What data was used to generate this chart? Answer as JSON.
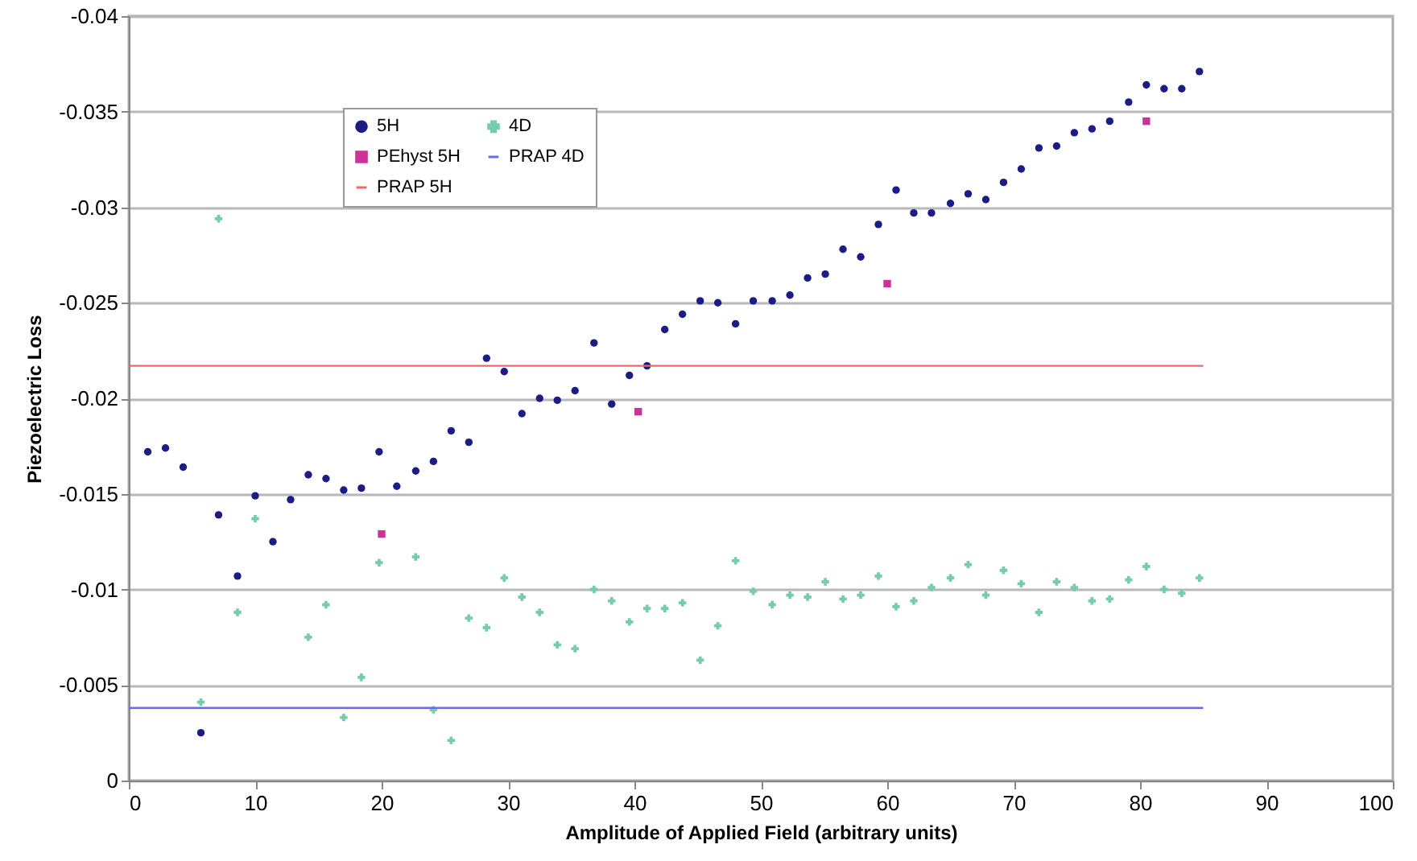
{
  "chart_data": {
    "type": "scatter",
    "xlabel": "Amplitude of Applied Field (arbitrary units)",
    "ylabel": "Piezoelectric Loss",
    "xlim": [
      0,
      100
    ],
    "xticks": [
      0,
      10,
      20,
      30,
      40,
      50,
      60,
      70,
      80,
      90,
      100
    ],
    "ylim": [
      0,
      -0.04
    ],
    "yticks": [
      0,
      -0.005,
      -0.01,
      -0.015,
      -0.02,
      -0.025,
      -0.03,
      -0.035,
      -0.04
    ],
    "grid": "y",
    "legend": "top left",
    "series": [
      {
        "name": "5H",
        "color": "#1c1c84",
        "marker": "circle",
        "x": [
          1.5,
          2.9,
          4.3,
          5.7,
          7.1,
          8.6,
          10.0,
          11.4,
          12.8,
          14.2,
          15.6,
          17.0,
          18.4,
          19.8,
          21.2,
          22.7,
          24.1,
          25.5,
          26.9,
          28.3,
          29.7,
          31.1,
          32.5,
          33.9,
          35.3,
          36.8,
          38.2,
          39.6,
          41.0,
          42.4,
          43.8,
          45.2,
          46.6,
          48.0,
          49.4,
          50.9,
          52.3,
          53.7,
          55.1,
          56.5,
          57.9,
          59.3,
          60.7,
          62.1,
          63.5,
          65.0,
          66.4,
          67.8,
          69.2,
          70.6,
          72.0,
          73.4,
          74.8,
          76.2,
          77.6,
          79.1,
          80.5,
          81.9,
          83.3,
          84.7
        ],
        "values": [
          -0.0172,
          -0.0174,
          -0.0164,
          -0.0025,
          -0.0139,
          -0.0107,
          -0.0149,
          -0.0125,
          -0.0147,
          -0.016,
          -0.0158,
          -0.0152,
          -0.0153,
          -0.0172,
          -0.0154,
          -0.0162,
          -0.0167,
          -0.0183,
          -0.0177,
          -0.0221,
          -0.0214,
          -0.0192,
          -0.02,
          -0.0199,
          -0.0204,
          -0.0229,
          -0.0197,
          -0.0212,
          -0.0217,
          -0.0236,
          -0.0244,
          -0.0251,
          -0.025,
          -0.0239,
          -0.0251,
          -0.0251,
          -0.0254,
          -0.0263,
          -0.0265,
          -0.0278,
          -0.0274,
          -0.0291,
          -0.0309,
          -0.0297,
          -0.0297,
          -0.0302,
          -0.0307,
          -0.0304,
          -0.0313,
          -0.032,
          -0.0331,
          -0.0332,
          -0.0339,
          -0.0341,
          -0.0345,
          -0.0355,
          -0.0364,
          -0.0362,
          -0.0362,
          -0.0371
        ]
      },
      {
        "name": "PEhyst 5H",
        "color": "#cc3399",
        "marker": "square",
        "x": [
          20,
          40.3,
          60,
          80.5
        ],
        "values": [
          -0.0129,
          -0.0193,
          -0.026,
          -0.0345
        ]
      },
      {
        "name": "PRAP 5H",
        "type": "line",
        "color": "#f06868",
        "marker": "none",
        "x": [
          0,
          85
        ],
        "values": [
          -0.0217,
          -0.0217
        ]
      },
      {
        "name": "4D",
        "color": "#77ccaa",
        "marker": "cross",
        "x": [
          5.7,
          7.1,
          8.6,
          10.0,
          14.2,
          15.6,
          17.0,
          18.4,
          19.8,
          22.7,
          24.1,
          25.5,
          26.9,
          28.3,
          29.7,
          31.1,
          32.5,
          33.9,
          35.3,
          36.8,
          38.2,
          39.6,
          41.0,
          42.4,
          43.8,
          45.2,
          46.6,
          48.0,
          49.4,
          50.9,
          52.3,
          53.7,
          55.1,
          56.5,
          57.9,
          59.3,
          60.7,
          62.1,
          63.5,
          65.0,
          66.4,
          67.8,
          69.2,
          70.6,
          72.0,
          73.4,
          74.8,
          76.2,
          77.6,
          79.1,
          80.5,
          81.9,
          83.3,
          84.7
        ],
        "values": [
          -0.0041,
          -0.0294,
          -0.0088,
          -0.0137,
          -0.0075,
          -0.0092,
          -0.0033,
          -0.0054,
          -0.0114,
          -0.0117,
          -0.0037,
          -0.0021,
          -0.0085,
          -0.008,
          -0.0106,
          -0.0096,
          -0.0088,
          -0.0071,
          -0.0069,
          -0.01,
          -0.0094,
          -0.0083,
          -0.009,
          -0.009,
          -0.0093,
          -0.0063,
          -0.0081,
          -0.0115,
          -0.0099,
          -0.0092,
          -0.0097,
          -0.0096,
          -0.0104,
          -0.0095,
          -0.0097,
          -0.0107,
          -0.0091,
          -0.0094,
          -0.0101,
          -0.0106,
          -0.0113,
          -0.0097,
          -0.011,
          -0.0103,
          -0.0088,
          -0.0104,
          -0.0101,
          -0.0094,
          -0.0095,
          -0.0105,
          -0.0112,
          -0.01,
          -0.0098,
          -0.0106
        ]
      },
      {
        "name": "PRAP 4D",
        "type": "line",
        "color": "#6a6aea",
        "marker": "none",
        "x": [
          0,
          85
        ],
        "values": [
          -0.0038,
          -0.0038
        ]
      }
    ]
  }
}
